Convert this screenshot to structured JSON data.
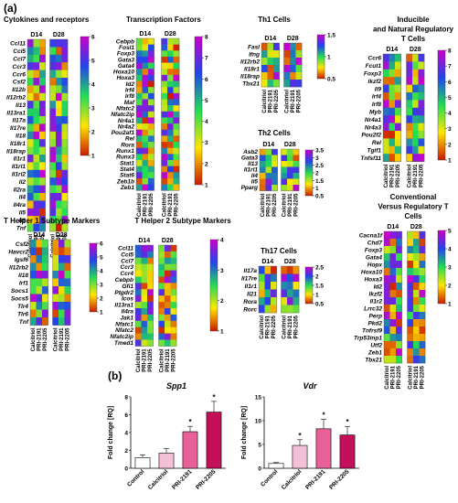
{
  "panel_a": "(a)",
  "panel_b": "(b)",
  "colors": {
    "heat_low": "#cc1a00",
    "heat_mid": "#ffe600",
    "heat_mid2": "#22dd55",
    "heat_high": "#2244ee",
    "heat_top": "#cc00cc",
    "bar_control": "#ffffff",
    "bar_calcitriol": "#f4c0d8",
    "bar_pri2191": "#e8609a",
    "bar_pri2205": "#c4105a"
  },
  "groups": [
    "D14",
    "D28"
  ],
  "treatments": [
    "Calcitriol",
    "PRI-2191",
    "PRI-2205"
  ],
  "chart_data": [
    {
      "type": "heatmap",
      "title": "Cytokines and receptors",
      "columns": [
        "Calcitriol",
        "PRI-2191",
        "PRI-2205"
      ],
      "groups": [
        "D14",
        "D28"
      ],
      "color_range": [
        1,
        6
      ],
      "colorbar_ticks": [
        1,
        2,
        3,
        4,
        5,
        6
      ],
      "rows": [
        "Ccl11",
        "Ccl5",
        "Ccl7",
        "Ccr3",
        "Ccr6",
        "Csf2",
        "Il12b",
        "Il12rb2",
        "Il13",
        "Il13ra1",
        "Il17a",
        "Il17re",
        "Il18",
        "Il18r1",
        "Il18rap",
        "Il1r1",
        "Il1rl1",
        "Il1rl2",
        "Il2",
        "Il2ra",
        "Il4",
        "Il4ra",
        "Il5",
        "Il9",
        "Tnf"
      ]
    },
    {
      "type": "heatmap",
      "title": "Transcription Factors",
      "columns": [
        "Calcitriol",
        "PRI-2191",
        "PRI-2205"
      ],
      "groups": [
        "D14",
        "D28"
      ],
      "color_range": [
        1,
        8
      ],
      "colorbar_ticks": [
        1,
        2,
        3,
        4,
        5,
        6,
        7,
        8
      ],
      "rows": [
        "Cebpb",
        "Fosl1",
        "Foxp3",
        "Gata3",
        "Gata4",
        "Hoxa10",
        "Hoxa3",
        "Id2",
        "Irf4",
        "Irf8",
        "Maf",
        "Nfatc2",
        "Nfatc2ip",
        "Nr4a1",
        "Nr4a2",
        "Pou2af1",
        "Rel",
        "Rora",
        "Runx1",
        "Runx3",
        "Stat1",
        "Stat4",
        "Stat6",
        "Zeb1b",
        "Zeb1"
      ]
    },
    {
      "type": "heatmap",
      "title": "Th1 Cells",
      "columns": [
        "Calcitriol",
        "PRI-2191",
        "PRI-2205"
      ],
      "groups": [
        "D14",
        "D28"
      ],
      "color_range": [
        0.5,
        1.5
      ],
      "colorbar_ticks": [
        0.5,
        1.0,
        1.5
      ],
      "rows": [
        "Fasl",
        "Ifng",
        "Il12rb2",
        "Il18r1",
        "Il18rap",
        "Tbx21"
      ]
    },
    {
      "type": "heatmap",
      "title": "Th2 Cells",
      "columns": [
        "Calcitriol",
        "PRI-2191",
        "PRI-2205"
      ],
      "groups": [
        "D14",
        "D28"
      ],
      "color_range": [
        0.5,
        3.5
      ],
      "colorbar_ticks": [
        0.5,
        1.0,
        1.5,
        2.0,
        2.5,
        3.0,
        3.5
      ],
      "rows": [
        "Asb2",
        "Gata3",
        "Il13",
        "Il1rl1",
        "Il4",
        "Il5",
        "Pparg"
      ]
    },
    {
      "type": "heatmap",
      "title": "Th17 Cells",
      "columns": [
        "Calcitriol",
        "PRI-2191",
        "PRI-2205"
      ],
      "groups": [
        "D14",
        "D28"
      ],
      "color_range": [
        0.5,
        2.5
      ],
      "colorbar_ticks": [
        0.5,
        1.0,
        1.5,
        2.0,
        2.5
      ],
      "rows": [
        "Il17a",
        "Il17re",
        "Il1r1",
        "Il21",
        "Rora",
        "Rorc"
      ]
    },
    {
      "type": "heatmap",
      "title": "Inducible and Natural Regulatory T Cells",
      "columns": [
        "Calcitriol",
        "PRI-2191",
        "PRI-2205"
      ],
      "groups": [
        "D14",
        "D28"
      ],
      "color_range": [
        1,
        8
      ],
      "colorbar_ticks": [
        1,
        2,
        3,
        4,
        5,
        6,
        7,
        8
      ],
      "rows": [
        "Ccr6",
        "Fcut1",
        "Foxp3",
        "Ikzf2",
        "Il9",
        "Irf4",
        "Irf8",
        "Myb",
        "Nr4a1",
        "Nr4a3",
        "Pou2f2",
        "Rel",
        "Tgif1",
        "Tnfsf11"
      ]
    },
    {
      "type": "heatmap",
      "title": "T Helper 1 Subtype Markers",
      "columns": [
        "Calcitriol",
        "PRI-2191",
        "PRI-2205"
      ],
      "groups": [
        "D14",
        "D28"
      ],
      "color_range": [
        1,
        6
      ],
      "colorbar_ticks": [
        1,
        2,
        3,
        4,
        5,
        6
      ],
      "rows": [
        "Csf2",
        "Havcr2",
        "Igsf6",
        "Il12rb2",
        "Il18",
        "Irf1",
        "Socs1",
        "Socs5",
        "Tlr4",
        "Tlr6",
        "Tnf"
      ]
    },
    {
      "type": "heatmap",
      "title": "T Helper 2 Subtype Markers",
      "columns": [
        "Calcitriol",
        "PRI-2191",
        "PRI-2205"
      ],
      "groups": [
        "D14",
        "D28"
      ],
      "color_range": [
        1,
        4
      ],
      "colorbar_ticks": [
        1,
        2,
        3,
        4
      ],
      "rows": [
        "Ccl11",
        "Ccl5",
        "Ccl7",
        "Ccr3",
        "Ccr4",
        "Cebpb",
        "Gfi1",
        "Ptgdr2",
        "Icos",
        "Il13ra1",
        "Il4ra",
        "Jak1",
        "Nfatc1",
        "Nfatc2",
        "Nfatc2ip",
        "Tmed1"
      ]
    },
    {
      "type": "heatmap",
      "title": "Conventional Versus Regulatory T Cells",
      "columns": [
        "Calcitriol",
        "PRI-2191",
        "PRI-2205"
      ],
      "groups": [
        "D14",
        "D28"
      ],
      "color_range": [
        1,
        5
      ],
      "colorbar_ticks": [
        1,
        2,
        3,
        4,
        5
      ],
      "rows": [
        "Cacna1f",
        "Chd7",
        "Foxp3",
        "Gata4",
        "Hopx",
        "Hoxa10",
        "Hoxa3",
        "Id2",
        "Ikzf2",
        "Il1r2",
        "Lrrc32",
        "Perp",
        "Pkd2",
        "Tnfrsf9",
        "Trp53inp1",
        "Utf2",
        "Zeb1",
        "Tbx21"
      ]
    },
    {
      "type": "bar",
      "title": "Spp1",
      "ylabel": "Fold change [RQ]",
      "categories": [
        "Control",
        "Calcitriol",
        "PRI-2191",
        "PRI-2205"
      ],
      "values": [
        1.2,
        1.7,
        4.1,
        6.3
      ],
      "errors": [
        0.3,
        0.5,
        0.6,
        1.2
      ],
      "ylim": [
        0,
        8
      ],
      "yticks": [
        0,
        2,
        4,
        6,
        8
      ],
      "significance": [
        "",
        "",
        "*",
        "*"
      ]
    },
    {
      "type": "bar",
      "title": "Vdr",
      "ylabel": "Fold change [RQ]",
      "categories": [
        "Control",
        "Calcitriol",
        "PRI-2191",
        "PRI-2205"
      ],
      "values": [
        1.0,
        4.8,
        8.3,
        7.0
      ],
      "errors": [
        0.2,
        1.2,
        2.0,
        1.8
      ],
      "ylim": [
        0,
        15
      ],
      "yticks": [
        0,
        5,
        10,
        15
      ],
      "significance": [
        "",
        "*",
        "*",
        "*"
      ]
    }
  ]
}
